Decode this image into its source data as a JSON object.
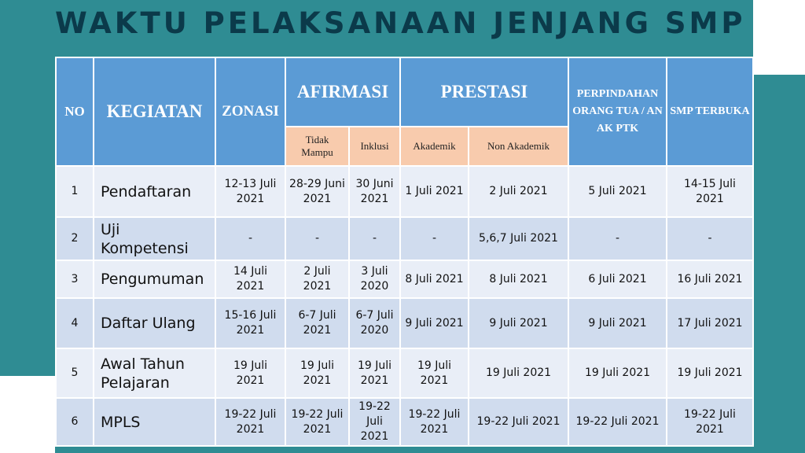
{
  "title": "WAKTU PELAKSANAAN JENJANG SMP",
  "table": {
    "columns": [
      {
        "label": "NO"
      },
      {
        "label": "KEGIATAN"
      },
      {
        "label": "ZONASI"
      },
      {
        "label": "AFIRMASI",
        "sub": [
          "Tidak Mampu",
          "Inklusi"
        ]
      },
      {
        "label": "PRESTASI",
        "sub": [
          "Akademik",
          "Non Akademik"
        ]
      },
      {
        "label": "PERPINDAHAN ORANG TUA / ANAK PTK"
      },
      {
        "label": "SMP TERBUKA"
      }
    ],
    "rows": [
      [
        "1",
        "Pendaftaran",
        "12-13 Juli 2021",
        "28-29 Juni 2021",
        "30 Juni 2021",
        "1 Juli 2021",
        "2 Juli 2021",
        "5 Juli 2021",
        "14-15 Juli 2021"
      ],
      [
        "2",
        "Uji Kompetensi",
        "-",
        "-",
        "-",
        "-",
        "5,6,7 Juli 2021",
        "-",
        "-"
      ],
      [
        "3",
        "Pengumuman",
        "14 Juli 2021",
        "2 Juli 2021",
        "3 Juli 2020",
        "8 Juli 2021",
        "8 Juli 2021",
        "6 Juli 2021",
        "16 Juli 2021"
      ],
      [
        "4",
        "Daftar Ulang",
        "15-16 Juli 2021",
        "6-7 Juli 2021",
        "6-7 Juli 2020",
        "9 Juli 2021",
        "9 Juli 2021",
        "9 Juli 2021",
        "17 Juli 2021"
      ],
      [
        "5",
        "Awal Tahun Pelajaran",
        "19 Juli 2021",
        "19 Juli 2021",
        "19 Juli 2021",
        "19 Juli 2021",
        "19 Juli 2021",
        "19 Juli 2021",
        "19 Juli 2021"
      ],
      [
        "6",
        "MPLS",
        "19-22 Juli 2021",
        "19-22 Juli 2021",
        "19-22 Juli 2021",
        "19-22 Juli 2021",
        "19-22 Juli 2021",
        "19-22 Juli 2021",
        "19-22 Juli 2021"
      ]
    ]
  }
}
